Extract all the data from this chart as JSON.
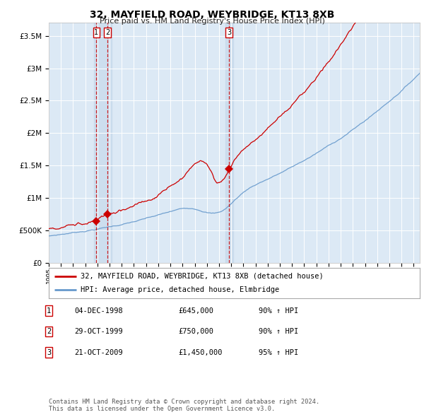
{
  "title": "32, MAYFIELD ROAD, WEYBRIDGE, KT13 8XB",
  "subtitle": "Price paid vs. HM Land Registry's House Price Index (HPI)",
  "xlim": [
    1995.0,
    2025.5
  ],
  "ylim": [
    0,
    3700000
  ],
  "yticks": [
    0,
    500000,
    1000000,
    1500000,
    2000000,
    2500000,
    3000000,
    3500000
  ],
  "ytick_labels": [
    "£0",
    "£500K",
    "£1M",
    "£1.5M",
    "£2M",
    "£2.5M",
    "£3M",
    "£3.5M"
  ],
  "plot_bg_color": "#dce9f5",
  "red_line_color": "#cc0000",
  "blue_line_color": "#6699cc",
  "marker_color": "#cc0000",
  "vline_color": "#cc0000",
  "band_color": "#c0d4e8",
  "transactions": [
    {
      "label": "1",
      "date": "04-DEC-1998",
      "year": 1998.92,
      "price": 645000,
      "pct": "90%",
      "dir": "↑"
    },
    {
      "label": "2",
      "date": "29-OCT-1999",
      "year": 1999.83,
      "price": 750000,
      "pct": "90%",
      "dir": "↑"
    },
    {
      "label": "3",
      "date": "21-OCT-2009",
      "year": 2009.81,
      "price": 1450000,
      "pct": "95%",
      "dir": "↑"
    }
  ],
  "legend_line1": "32, MAYFIELD ROAD, WEYBRIDGE, KT13 8XB (detached house)",
  "legend_line2": "HPI: Average price, detached house, Elmbridge",
  "footnote": "Contains HM Land Registry data © Crown copyright and database right 2024.\nThis data is licensed under the Open Government Licence v3.0.",
  "table_rows": [
    [
      "1",
      "04-DEC-1998",
      "£645,000",
      "90% ↑ HPI"
    ],
    [
      "2",
      "29-OCT-1999",
      "£750,000",
      "90% ↑ HPI"
    ],
    [
      "3",
      "21-OCT-2009",
      "£1,450,000",
      "95% ↑ HPI"
    ]
  ],
  "xtick_years": [
    1995,
    1996,
    1997,
    1998,
    1999,
    2000,
    2001,
    2002,
    2003,
    2004,
    2005,
    2006,
    2007,
    2008,
    2009,
    2010,
    2011,
    2012,
    2013,
    2014,
    2015,
    2016,
    2017,
    2018,
    2019,
    2020,
    2021,
    2022,
    2023,
    2024,
    2025
  ]
}
